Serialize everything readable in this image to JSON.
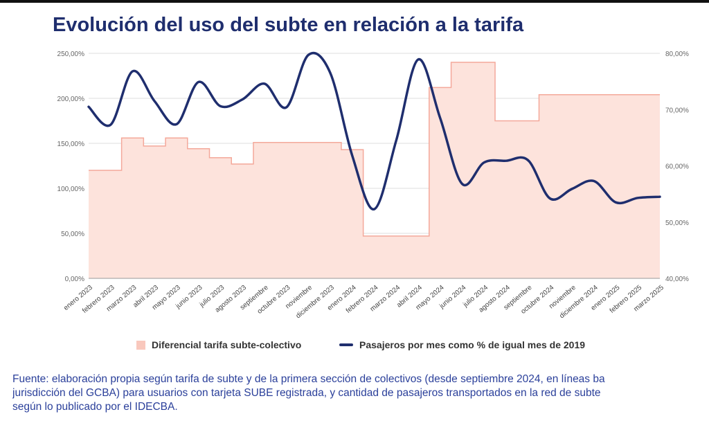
{
  "title": "Evolución del uso del subte en relación a la tarifa",
  "source_lines": [
    "Fuente: elaboración propia según tarifa de subte y de la primera sección de colectivos (desde septiembre 2024, en líneas ba",
    "jurisdicción del GCBA) para usuarios con tarjeta SUBE registrada, y cantidad de pasajeros transportados en la red de subte",
    "según lo publicado por el IDECBA."
  ],
  "colors": {
    "title": "#1f2e6e",
    "line": "#1f2e6e",
    "area_fill": "#fde3dc",
    "area_stroke": "#f4a89a",
    "legend_swatch": "#f9c8bd",
    "source_text": "#2a3f9a"
  },
  "chart_data": {
    "type": "area",
    "title": "Evolución del uso del subte en relación a la tarifa",
    "categories": [
      "enero 2023",
      "febrero 2023",
      "marzo 2023",
      "abril 2023",
      "mayo 2023",
      "junio 2023",
      "julio 2023",
      "agosto 2023",
      "septiembre",
      "octubre 2023",
      "noviembre",
      "diciembre 2023",
      "enero 2024",
      "febrero 2024",
      "marzo 2024",
      "abril 2024",
      "mayo 2024",
      "junio 2024",
      "julio 2024",
      "agosto 2024",
      "septiembre",
      "octubre 2024",
      "noviembre",
      "diciembre 2024",
      "enero 2025",
      "febrero 2025",
      "marzo 2025"
    ],
    "left_axis": {
      "ticks": [
        "0,00%",
        "50,00%",
        "100,00%",
        "150,00%",
        "200,00%",
        "250,00%"
      ],
      "range": [
        0,
        250
      ]
    },
    "right_axis": {
      "ticks": [
        "40,00%",
        "50,00%",
        "60,00%",
        "70,00%",
        "80,00%"
      ],
      "range": [
        40,
        80
      ]
    },
    "series": [
      {
        "name": "Diferencial tarifa subte-colectivo",
        "axis": "left",
        "style": "step-area",
        "values": [
          120,
          120,
          156,
          147,
          156,
          144,
          134,
          127,
          151,
          151,
          151,
          151,
          143,
          47,
          47,
          47,
          212,
          240,
          240,
          175,
          175,
          204,
          204,
          204,
          204,
          204,
          204
        ]
      },
      {
        "name": "Pasajeros por mes como % de igual mes de 2019",
        "axis": "right",
        "style": "smooth-line",
        "values": [
          70.5,
          67.3,
          76.8,
          71.5,
          67.4,
          74.9,
          70.6,
          71.8,
          74.6,
          70.4,
          79.7,
          76.5,
          61.8,
          52.3,
          64.5,
          78.9,
          68.5,
          56.8,
          60.6,
          60.9,
          61.0,
          54.2,
          55.9,
          57.3,
          53.5,
          54.3,
          54.5
        ]
      }
    ],
    "grid": true,
    "legend": "bottom"
  }
}
